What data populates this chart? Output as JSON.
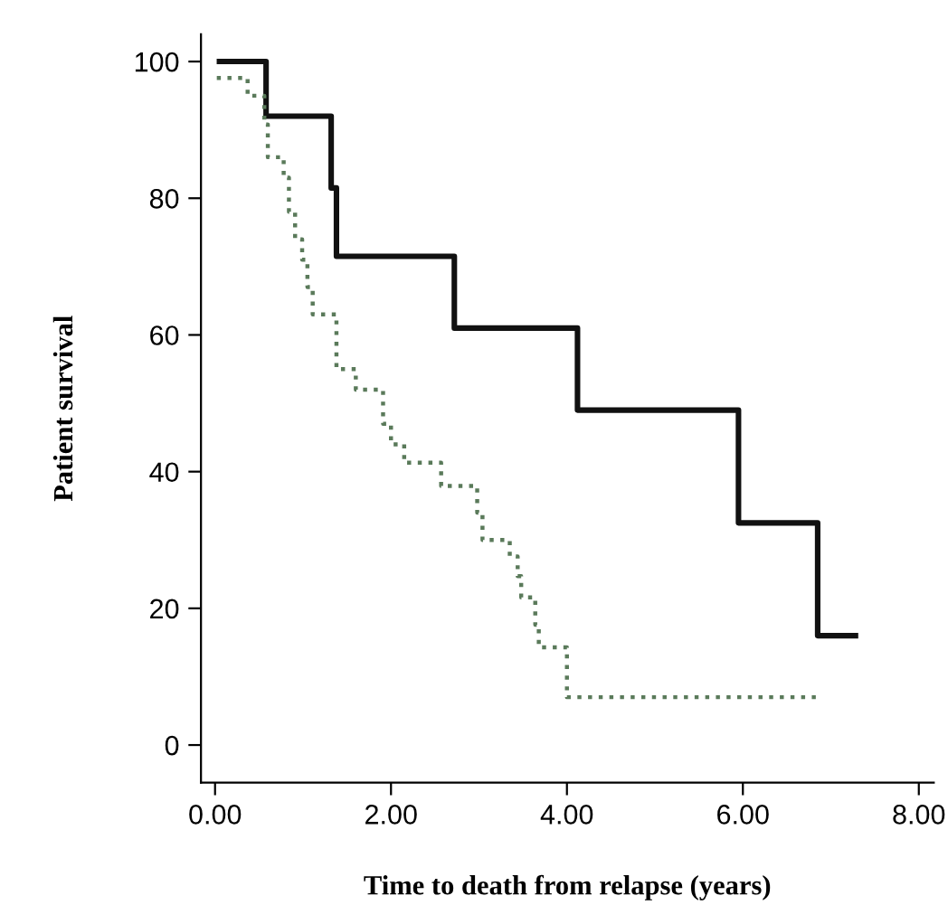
{
  "chart_data": {
    "type": "step",
    "xlabel": "Time to death from relapse (years)",
    "ylabel": "Patient survival",
    "xlim": [
      -0.16,
      8.17
    ],
    "ylim": [
      -5.5,
      104
    ],
    "xticks": [
      {
        "value": 0,
        "label": "0.00"
      },
      {
        "value": 2,
        "label": "2.00"
      },
      {
        "value": 4,
        "label": "4.00"
      },
      {
        "value": 6,
        "label": "6.00"
      },
      {
        "value": 8,
        "label": "8.00"
      }
    ],
    "yticks": [
      0,
      20,
      40,
      60,
      80,
      100
    ],
    "grid": false,
    "legend": false,
    "series": [
      {
        "color": "#111111",
        "line_style": "solid",
        "x": [
          0.05,
          0.58,
          1.32,
          1.38,
          2.72,
          4.12,
          5.95,
          6.85,
          7.28
        ],
        "values": [
          100,
          92,
          81.5,
          71.5,
          61,
          49,
          32.5,
          16,
          16
        ]
      },
      {
        "color": "#5a7a5a",
        "line_style": "dotted",
        "x": [
          0.02,
          0.37,
          0.56,
          0.6,
          0.78,
          0.84,
          0.91,
          0.99,
          1.05,
          1.11,
          1.38,
          1.6,
          1.91,
          2.0,
          2.15,
          2.57,
          2.98,
          3.04,
          3.35,
          3.44,
          3.48,
          3.64,
          3.68,
          4.0,
          6.89
        ],
        "values": [
          97.6,
          95,
          90.8,
          86,
          83,
          78,
          74,
          71,
          67,
          63,
          55,
          52,
          47,
          44,
          41.3,
          37.9,
          34,
          30,
          27.6,
          24.7,
          21.6,
          17.6,
          14.3,
          7,
          7
        ]
      }
    ]
  }
}
